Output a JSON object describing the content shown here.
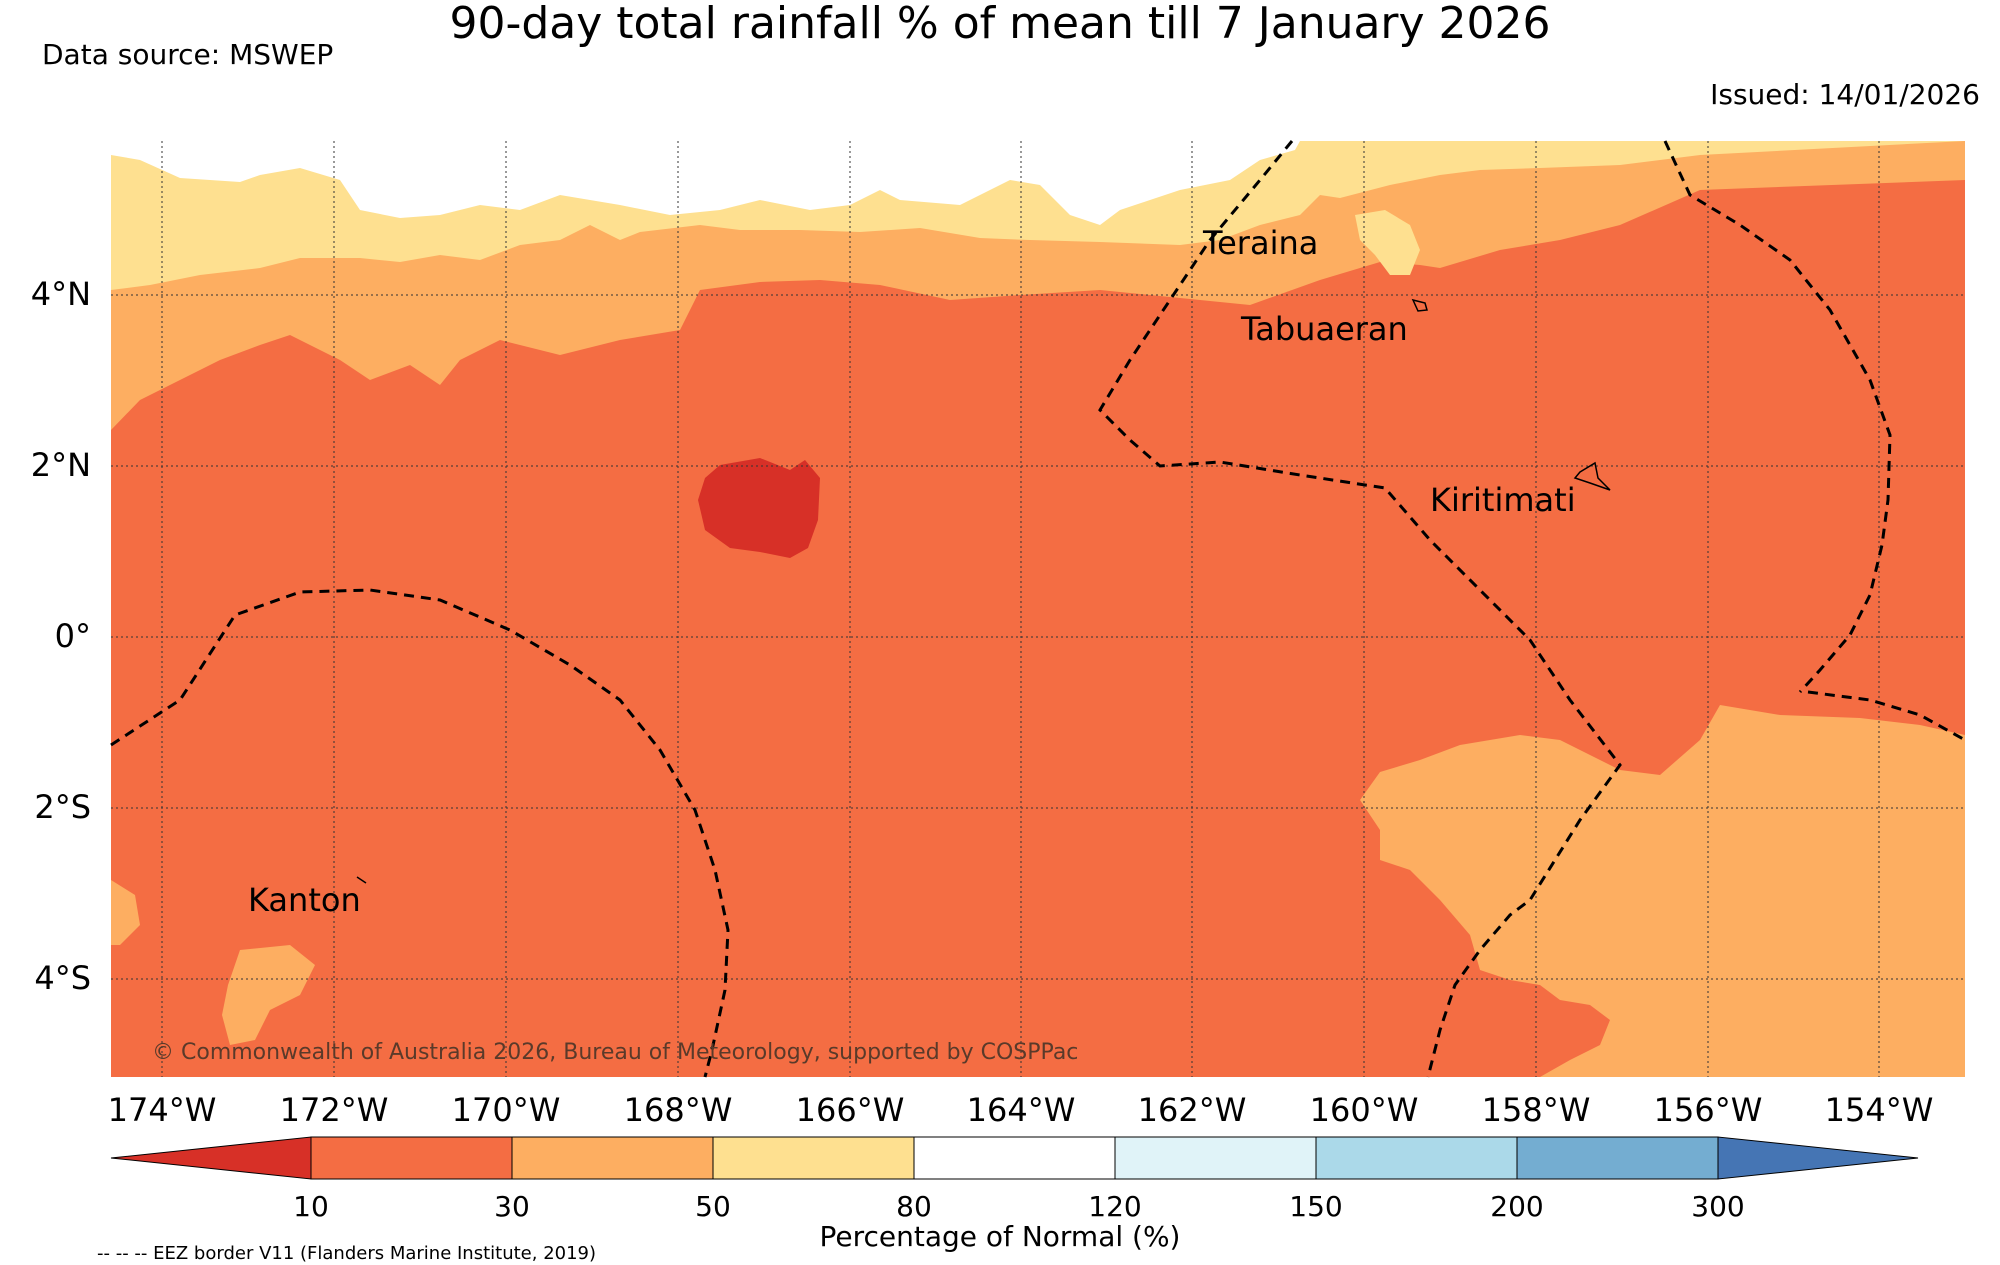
{
  "title": "90-day total rainfall % of mean till 7 January 2026",
  "data_source": "Data source: MSWEP",
  "issued": "Issued: 14/01/2026",
  "latitude_ticks": [
    "4°N",
    "2°N",
    "0°",
    "2°S",
    "4°S"
  ],
  "longitude_ticks": [
    "174°W",
    "172°W",
    "170°W",
    "168°W",
    "166°W",
    "164°W",
    "162°W",
    "160°W",
    "158°W",
    "156°W",
    "154°W"
  ],
  "places": {
    "teraina": "Teraina",
    "tabuaeran": "Tabuaeran",
    "kiritimati": "Kiritimati",
    "kanton": "Kanton"
  },
  "copyright": "© Commonwealth of Australia 2026, Bureau of Meteorology, supported by COSPPac",
  "colorbar": {
    "title": "Percentage of Normal (%)",
    "labels": [
      "10",
      "30",
      "50",
      "80",
      "120",
      "150",
      "200",
      "300"
    ],
    "colors": [
      "#d73027",
      "#f46d43",
      "#fdae61",
      "#fee090",
      "#ffffff",
      "#e0f3f8",
      "#abd9e9",
      "#74add1",
      "#4575b4"
    ]
  },
  "eez_note": "-- -- -- EEZ border V11 (Flanders Marine Institute, 2019)"
}
